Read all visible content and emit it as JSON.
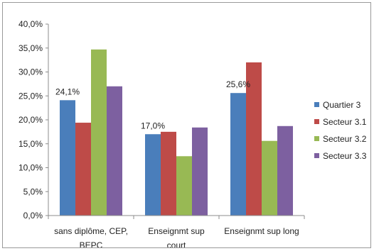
{
  "chart_data": {
    "type": "bar",
    "categories": [
      [
        "sans diplôme, CEP,",
        "BEPC"
      ],
      [
        "Enseignmt sup",
        "court"
      ],
      [
        "Enseignmt sup long"
      ]
    ],
    "series": [
      {
        "name": "Quartier 3",
        "color": "#4a7ebb",
        "values": [
          24.1,
          17.0,
          25.6
        ]
      },
      {
        "name": "Secteur 3.1",
        "color": "#be4b48",
        "values": [
          19.4,
          17.5,
          32.0
        ]
      },
      {
        "name": "Secteur 3.2",
        "color": "#98b954",
        "values": [
          34.7,
          12.4,
          15.6
        ]
      },
      {
        "name": "Secteur 3.3",
        "color": "#7d60a0",
        "values": [
          27.0,
          18.4,
          18.7
        ]
      }
    ],
    "data_labels": [
      {
        "series": 0,
        "category": 0,
        "text": "24,1%"
      },
      {
        "series": 0,
        "category": 1,
        "text": "17,0%"
      },
      {
        "series": 0,
        "category": 2,
        "text": "25,6%"
      }
    ],
    "y_ticks": [
      {
        "value": 0,
        "label": "0,0%"
      },
      {
        "value": 5,
        "label": "5,0%"
      },
      {
        "value": 10,
        "label": "10,0%"
      },
      {
        "value": 15,
        "label": "15,0%"
      },
      {
        "value": 20,
        "label": "20,0%"
      },
      {
        "value": 25,
        "label": "25,0%"
      },
      {
        "value": 30,
        "label": "30,0%"
      },
      {
        "value": 35,
        "label": "35,0%"
      },
      {
        "value": 40,
        "label": "40,0%"
      }
    ],
    "ylim": [
      0,
      40
    ],
    "title": "",
    "xlabel": "",
    "ylabel": "",
    "grid": false,
    "legend_position": "right"
  }
}
